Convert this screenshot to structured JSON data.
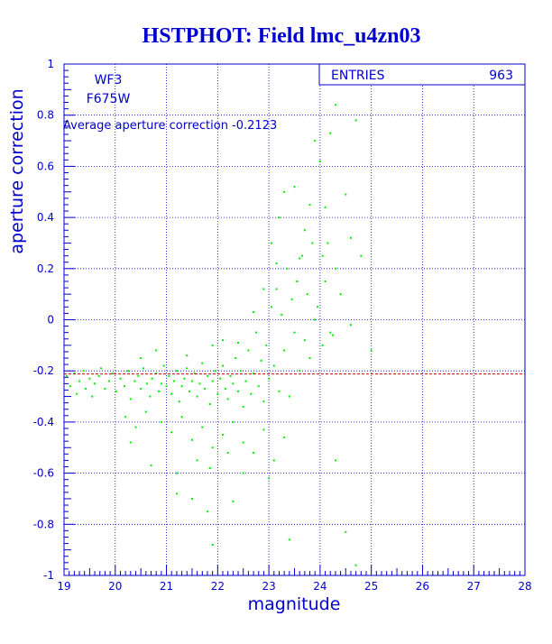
{
  "chart_data": {
    "type": "scatter",
    "title": "HSTPHOT: Field lmc_u4zn03",
    "xlabel": "magnitude",
    "ylabel": "aperture correction",
    "xlim": [
      19,
      28
    ],
    "ylim": [
      -1,
      1
    ],
    "x_ticks": [
      19,
      20,
      21,
      22,
      23,
      24,
      25,
      26,
      27,
      28
    ],
    "y_ticks": [
      -1,
      -0.8,
      -0.6,
      -0.4,
      -0.2,
      0,
      0.2,
      0.4,
      0.6,
      0.8,
      1
    ],
    "grid": true,
    "annotations": {
      "camera": "WF3",
      "filter": "F675W",
      "average_text": "Average aperture correction -0.2123",
      "average_value": -0.2123
    },
    "stats_box": {
      "label": "ENTRIES",
      "value": "963"
    },
    "colors": {
      "points": "#00ee00",
      "axes": "#0000cc",
      "average_line": "#cc0000",
      "background": "#ffffff"
    },
    "points": [
      [
        19.05,
        -0.22
      ],
      [
        19.12,
        -0.26
      ],
      [
        19.2,
        -0.21
      ],
      [
        19.25,
        -0.29
      ],
      [
        19.3,
        -0.24
      ],
      [
        19.38,
        -0.2
      ],
      [
        19.42,
        -0.27
      ],
      [
        19.5,
        -0.23
      ],
      [
        19.55,
        -0.3
      ],
      [
        19.6,
        -0.25
      ],
      [
        19.68,
        -0.22
      ],
      [
        19.72,
        -0.19
      ],
      [
        19.8,
        -0.27
      ],
      [
        19.88,
        -0.24
      ],
      [
        19.95,
        -0.21
      ],
      [
        20.02,
        -0.28
      ],
      [
        20.1,
        -0.23
      ],
      [
        20.18,
        -0.26
      ],
      [
        20.25,
        -0.2
      ],
      [
        20.3,
        -0.31
      ],
      [
        20.38,
        -0.24
      ],
      [
        20.45,
        -0.22
      ],
      [
        20.5,
        -0.27
      ],
      [
        20.55,
        -0.19
      ],
      [
        20.62,
        -0.25
      ],
      [
        20.68,
        -0.3
      ],
      [
        20.72,
        -0.23
      ],
      [
        20.8,
        -0.21
      ],
      [
        20.85,
        -0.28
      ],
      [
        20.9,
        -0.25
      ],
      [
        20.95,
        -0.18
      ],
      [
        21.0,
        -0.26
      ],
      [
        21.05,
        -0.22
      ],
      [
        21.1,
        -0.29
      ],
      [
        21.15,
        -0.24
      ],
      [
        21.2,
        -0.2
      ],
      [
        21.25,
        -0.32
      ],
      [
        21.3,
        -0.26
      ],
      [
        21.35,
        -0.23
      ],
      [
        21.4,
        -0.19
      ],
      [
        21.45,
        -0.28
      ],
      [
        21.5,
        -0.24
      ],
      [
        21.55,
        -0.21
      ],
      [
        21.6,
        -0.3
      ],
      [
        21.65,
        -0.25
      ],
      [
        21.7,
        -0.17
      ],
      [
        21.75,
        -0.27
      ],
      [
        21.8,
        -0.22
      ],
      [
        21.85,
        -0.33
      ],
      [
        21.9,
        -0.24
      ],
      [
        21.95,
        -0.2
      ],
      [
        22.0,
        -0.29
      ],
      [
        22.05,
        -0.23
      ],
      [
        22.1,
        -0.18
      ],
      [
        22.15,
        -0.27
      ],
      [
        22.2,
        -0.31
      ],
      [
        22.25,
        -0.22
      ],
      [
        22.3,
        -0.25
      ],
      [
        22.35,
        -0.15
      ],
      [
        22.4,
        -0.28
      ],
      [
        22.45,
        -0.2
      ],
      [
        22.5,
        -0.34
      ],
      [
        22.55,
        -0.24
      ],
      [
        22.6,
        -0.12
      ],
      [
        22.65,
        -0.29
      ],
      [
        22.7,
        -0.21
      ],
      [
        22.75,
        -0.05
      ],
      [
        22.8,
        -0.26
      ],
      [
        22.85,
        -0.16
      ],
      [
        22.9,
        -0.32
      ],
      [
        22.95,
        -0.1
      ],
      [
        23.0,
        -0.23
      ],
      [
        23.05,
        0.05
      ],
      [
        23.1,
        -0.18
      ],
      [
        23.15,
        0.12
      ],
      [
        23.2,
        -0.28
      ],
      [
        23.25,
        0.02
      ],
      [
        23.3,
        -0.12
      ],
      [
        23.35,
        0.2
      ],
      [
        23.4,
        -0.3
      ],
      [
        23.45,
        0.08
      ],
      [
        23.5,
        -0.05
      ],
      [
        23.55,
        0.15
      ],
      [
        23.6,
        -0.2
      ],
      [
        23.65,
        0.25
      ],
      [
        23.7,
        -0.08
      ],
      [
        23.75,
        0.1
      ],
      [
        23.8,
        -0.15
      ],
      [
        23.85,
        0.3
      ],
      [
        23.9,
        0.0
      ],
      [
        23.95,
        0.05
      ],
      [
        24.05,
        -0.1
      ],
      [
        24.1,
        0.15
      ],
      [
        24.2,
        -0.05
      ],
      [
        24.3,
        0.2
      ],
      [
        24.4,
        0.1
      ],
      [
        24.6,
        -0.02
      ],
      [
        24.8,
        0.25
      ],
      [
        25.0,
        -0.12
      ],
      [
        20.2,
        -0.38
      ],
      [
        20.4,
        -0.42
      ],
      [
        20.6,
        -0.36
      ],
      [
        20.9,
        -0.4
      ],
      [
        21.1,
        -0.44
      ],
      [
        21.3,
        -0.38
      ],
      [
        21.5,
        -0.47
      ],
      [
        21.7,
        -0.42
      ],
      [
        21.9,
        -0.5
      ],
      [
        22.1,
        -0.45
      ],
      [
        22.3,
        -0.4
      ],
      [
        22.5,
        -0.48
      ],
      [
        22.7,
        -0.52
      ],
      [
        22.9,
        -0.43
      ],
      [
        23.1,
        -0.55
      ],
      [
        23.3,
        -0.46
      ],
      [
        20.3,
        -0.48
      ],
      [
        20.7,
        -0.57
      ],
      [
        21.2,
        -0.6
      ],
      [
        21.6,
        -0.55
      ],
      [
        21.85,
        -0.58
      ],
      [
        22.2,
        -0.52
      ],
      [
        22.5,
        -0.6
      ],
      [
        23.0,
        -0.62
      ],
      [
        21.5,
        -0.7
      ],
      [
        21.2,
        -0.68
      ],
      [
        21.8,
        -0.75
      ],
      [
        22.3,
        -0.71
      ],
      [
        21.9,
        -0.88
      ],
      [
        23.4,
        -0.86
      ],
      [
        24.7,
        -0.96
      ],
      [
        24.3,
        -0.55
      ],
      [
        24.5,
        -0.83
      ],
      [
        20.5,
        -0.15
      ],
      [
        20.8,
        -0.12
      ],
      [
        21.4,
        -0.14
      ],
      [
        21.9,
        -0.1
      ],
      [
        22.1,
        -0.08
      ],
      [
        22.4,
        -0.09
      ],
      [
        22.7,
        0.03
      ],
      [
        22.9,
        0.12
      ],
      [
        23.05,
        0.3
      ],
      [
        23.2,
        0.4
      ],
      [
        23.3,
        0.5
      ],
      [
        23.5,
        0.52
      ],
      [
        23.6,
        0.24
      ],
      [
        23.8,
        0.45
      ],
      [
        23.9,
        0.7
      ],
      [
        24.0,
        0.62
      ],
      [
        24.1,
        0.44
      ],
      [
        24.2,
        0.73
      ],
      [
        24.3,
        0.84
      ],
      [
        24.5,
        0.49
      ],
      [
        24.6,
        0.32
      ],
      [
        24.7,
        0.78
      ],
      [
        24.15,
        0.3
      ],
      [
        24.05,
        0.25
      ],
      [
        24.25,
        -0.06
      ],
      [
        23.7,
        0.35
      ],
      [
        23.15,
        0.22
      ]
    ]
  }
}
